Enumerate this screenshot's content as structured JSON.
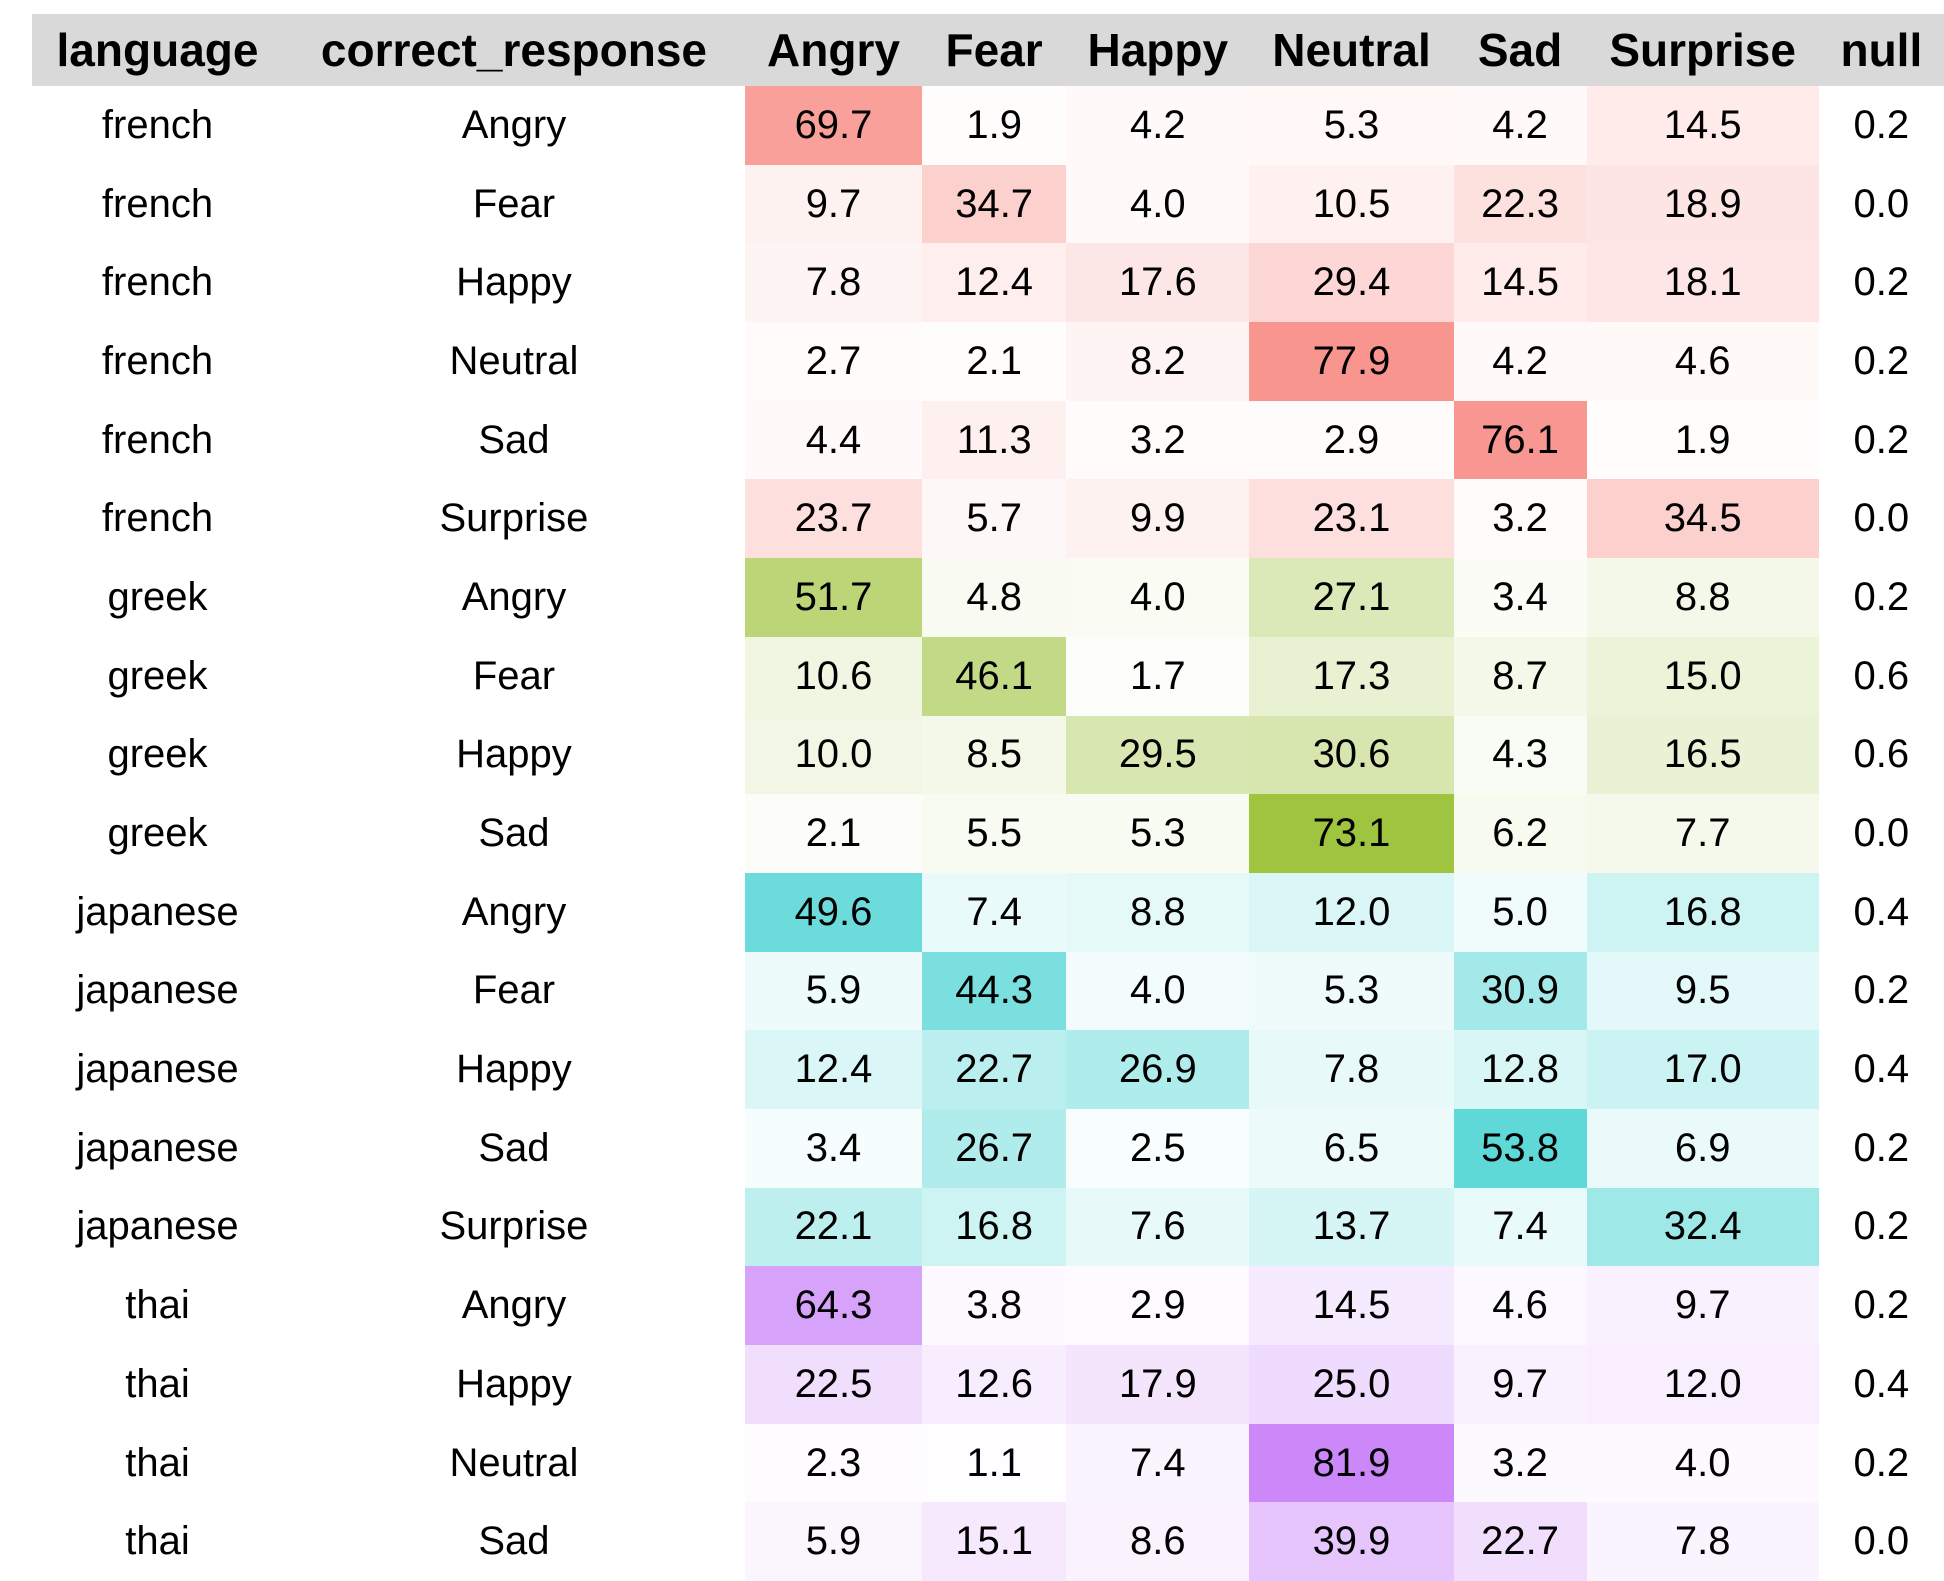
{
  "chart_data": {
    "type": "table",
    "columns": [
      "language",
      "correct_response",
      "Angry",
      "Fear",
      "Happy",
      "Neutral",
      "Sad",
      "Surprise",
      "null"
    ],
    "language_colors": {
      "french": "#f8958f",
      "greek": "#9fc43f",
      "japanese": "#5fd8d8",
      "thai": "#cc88f8"
    },
    "rows": [
      {
        "language": "french",
        "correct_response": "Angry",
        "values": [
          "69.7",
          "1.9",
          "4.2",
          "5.3",
          "4.2",
          "14.5",
          "0.2"
        ]
      },
      {
        "language": "french",
        "correct_response": "Fear",
        "values": [
          "9.7",
          "34.7",
          "4.0",
          "10.5",
          "22.3",
          "18.9",
          "0.0"
        ]
      },
      {
        "language": "french",
        "correct_response": "Happy",
        "values": [
          "7.8",
          "12.4",
          "17.6",
          "29.4",
          "14.5",
          "18.1",
          "0.2"
        ]
      },
      {
        "language": "french",
        "correct_response": "Neutral",
        "values": [
          "2.7",
          "2.1",
          "8.2",
          "77.9",
          "4.2",
          "4.6",
          "0.2"
        ]
      },
      {
        "language": "french",
        "correct_response": "Sad",
        "values": [
          "4.4",
          "11.3",
          "3.2",
          "2.9",
          "76.1",
          "1.9",
          "0.2"
        ]
      },
      {
        "language": "french",
        "correct_response": "Surprise",
        "values": [
          "23.7",
          "5.7",
          "9.9",
          "23.1",
          "3.2",
          "34.5",
          "0.0"
        ]
      },
      {
        "language": "greek",
        "correct_response": "Angry",
        "values": [
          "51.7",
          "4.8",
          "4.0",
          "27.1",
          "3.4",
          "8.8",
          "0.2"
        ]
      },
      {
        "language": "greek",
        "correct_response": "Fear",
        "values": [
          "10.6",
          "46.1",
          "1.7",
          "17.3",
          "8.7",
          "15.0",
          "0.6"
        ]
      },
      {
        "language": "greek",
        "correct_response": "Happy",
        "values": [
          "10.0",
          "8.5",
          "29.5",
          "30.6",
          "4.3",
          "16.5",
          "0.6"
        ]
      },
      {
        "language": "greek",
        "correct_response": "Sad",
        "values": [
          "2.1",
          "5.5",
          "5.3",
          "73.1",
          "6.2",
          "7.7",
          "0.0"
        ]
      },
      {
        "language": "japanese",
        "correct_response": "Angry",
        "values": [
          "49.6",
          "7.4",
          "8.8",
          "12.0",
          "5.0",
          "16.8",
          "0.4"
        ]
      },
      {
        "language": "japanese",
        "correct_response": "Fear",
        "values": [
          "5.9",
          "44.3",
          "4.0",
          "5.3",
          "30.9",
          "9.5",
          "0.2"
        ]
      },
      {
        "language": "japanese",
        "correct_response": "Happy",
        "values": [
          "12.4",
          "22.7",
          "26.9",
          "7.8",
          "12.8",
          "17.0",
          "0.4"
        ]
      },
      {
        "language": "japanese",
        "correct_response": "Sad",
        "values": [
          "3.4",
          "26.7",
          "2.5",
          "6.5",
          "53.8",
          "6.9",
          "0.2"
        ]
      },
      {
        "language": "japanese",
        "correct_response": "Surprise",
        "values": [
          "22.1",
          "16.8",
          "7.6",
          "13.7",
          "7.4",
          "32.4",
          "0.2"
        ]
      },
      {
        "language": "thai",
        "correct_response": "Angry",
        "values": [
          "64.3",
          "3.8",
          "2.9",
          "14.5",
          "4.6",
          "9.7",
          "0.2"
        ]
      },
      {
        "language": "thai",
        "correct_response": "Happy",
        "values": [
          "22.5",
          "12.6",
          "17.9",
          "25.0",
          "9.7",
          "12.0",
          "0.4"
        ]
      },
      {
        "language": "thai",
        "correct_response": "Neutral",
        "values": [
          "2.3",
          "1.1",
          "7.4",
          "81.9",
          "3.2",
          "4.0",
          "0.2"
        ]
      },
      {
        "language": "thai",
        "correct_response": "Sad",
        "values": [
          "5.9",
          "15.1",
          "8.6",
          "39.9",
          "22.7",
          "7.8",
          "0.0"
        ]
      }
    ]
  }
}
